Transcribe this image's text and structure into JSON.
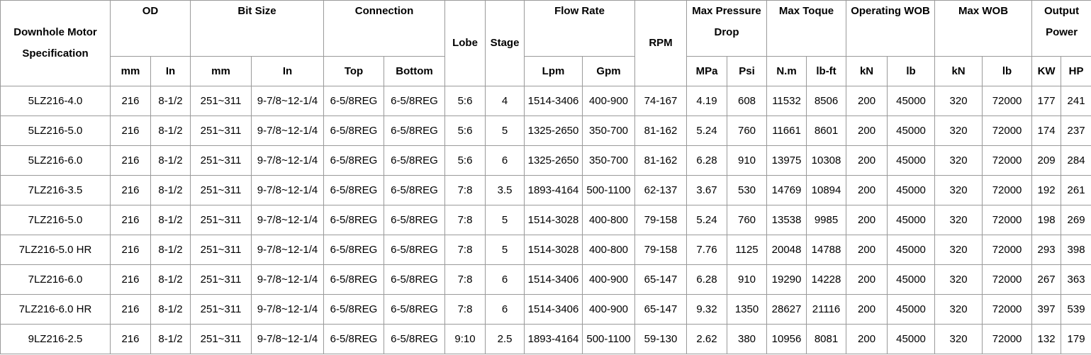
{
  "table": {
    "header": [
      "Downhole Motor Specification",
      "OD",
      "Bit Size",
      "Connection",
      "Lobe",
      "Stage",
      "Flow Rate",
      "RPM",
      "Max Pressure Drop",
      "Max Toque",
      "Operating WOB",
      "Max WOB",
      "Output Power"
    ],
    "subheader": [
      "mm",
      "In",
      "mm",
      "In",
      "Top",
      "Bottom",
      "Lpm",
      "Gpm",
      "MPa",
      "Psi",
      "N.m",
      "lb-ft",
      "kN",
      "lb",
      "kN",
      "lb",
      "KW",
      "HP"
    ],
    "rows": [
      [
        "5LZ216-4.0",
        "216",
        "8-1/2",
        "251~311",
        "9-7/8~12-1/4",
        "6-5/8REG",
        "6-5/8REG",
        "5:6",
        "4",
        "1514-3406",
        "400-900",
        "74-167",
        "4.19",
        "608",
        "11532",
        "8506",
        "200",
        "45000",
        "320",
        "72000",
        "177",
        "241"
      ],
      [
        "5LZ216-5.0",
        "216",
        "8-1/2",
        "251~311",
        "9-7/8~12-1/4",
        "6-5/8REG",
        "6-5/8REG",
        "5:6",
        "5",
        "1325-2650",
        "350-700",
        "81-162",
        "5.24",
        "760",
        "11661",
        "8601",
        "200",
        "45000",
        "320",
        "72000",
        "174",
        "237"
      ],
      [
        "5LZ216-6.0",
        "216",
        "8-1/2",
        "251~311",
        "9-7/8~12-1/4",
        "6-5/8REG",
        "6-5/8REG",
        "5:6",
        "6",
        "1325-2650",
        "350-700",
        "81-162",
        "6.28",
        "910",
        "13975",
        "10308",
        "200",
        "45000",
        "320",
        "72000",
        "209",
        "284"
      ],
      [
        "7LZ216-3.5",
        "216",
        "8-1/2",
        "251~311",
        "9-7/8~12-1/4",
        "6-5/8REG",
        "6-5/8REG",
        "7:8",
        "3.5",
        "1893-4164",
        "500-1100",
        "62-137",
        "3.67",
        "530",
        "14769",
        "10894",
        "200",
        "45000",
        "320",
        "72000",
        "192",
        "261"
      ],
      [
        "7LZ216-5.0",
        "216",
        "8-1/2",
        "251~311",
        "9-7/8~12-1/4",
        "6-5/8REG",
        "6-5/8REG",
        "7:8",
        "5",
        "1514-3028",
        "400-800",
        "79-158",
        "5.24",
        "760",
        "13538",
        "9985",
        "200",
        "45000",
        "320",
        "72000",
        "198",
        "269"
      ],
      [
        "7LZ216-5.0 HR",
        "216",
        "8-1/2",
        "251~311",
        "9-7/8~12-1/4",
        "6-5/8REG",
        "6-5/8REG",
        "7:8",
        "5",
        "1514-3028",
        "400-800",
        "79-158",
        "7.76",
        "1125",
        "20048",
        "14788",
        "200",
        "45000",
        "320",
        "72000",
        "293",
        "398"
      ],
      [
        "7LZ216-6.0",
        "216",
        "8-1/2",
        "251~311",
        "9-7/8~12-1/4",
        "6-5/8REG",
        "6-5/8REG",
        "7:8",
        "6",
        "1514-3406",
        "400-900",
        "65-147",
        "6.28",
        "910",
        "19290",
        "14228",
        "200",
        "45000",
        "320",
        "72000",
        "267",
        "363"
      ],
      [
        "7LZ216-6.0 HR",
        "216",
        "8-1/2",
        "251~311",
        "9-7/8~12-1/4",
        "6-5/8REG",
        "6-5/8REG",
        "7:8",
        "6",
        "1514-3406",
        "400-900",
        "65-147",
        "9.32",
        "1350",
        "28627",
        "21116",
        "200",
        "45000",
        "320",
        "72000",
        "397",
        "539"
      ],
      [
        "9LZ216-2.5",
        "216",
        "8-1/2",
        "251~311",
        "9-7/8~12-1/4",
        "6-5/8REG",
        "6-5/8REG",
        "9:10",
        "2.5",
        "1893-4164",
        "500-1100",
        "59-130",
        "2.62",
        "380",
        "10956",
        "8081",
        "200",
        "45000",
        "320",
        "72000",
        "132",
        "179"
      ]
    ]
  }
}
